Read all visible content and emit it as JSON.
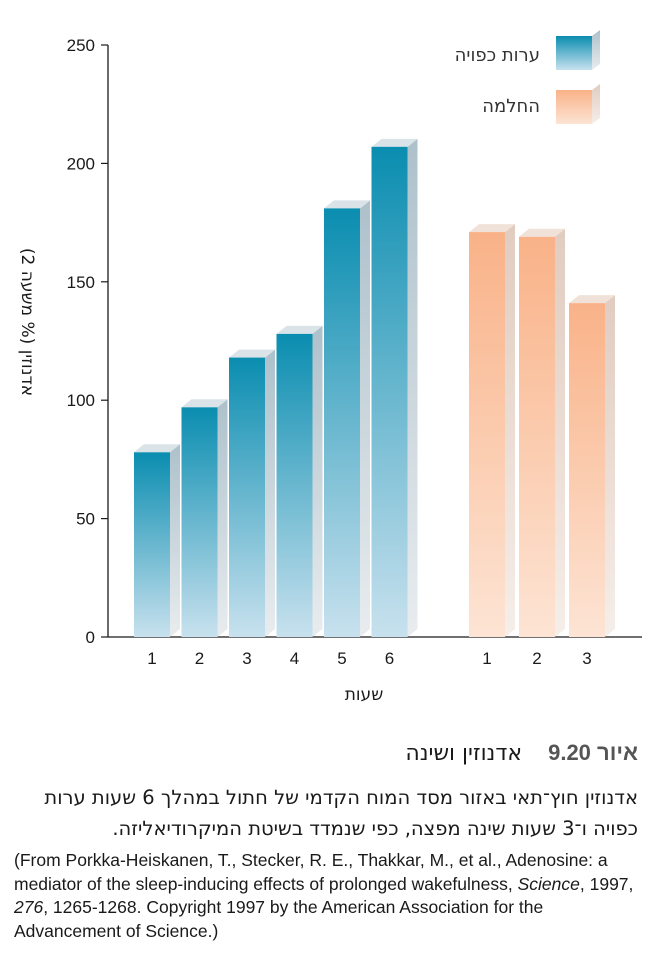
{
  "chart_data": {
    "type": "bar",
    "ylabel": "אדנוזין (% משעה 2)",
    "xlabel": "שעות",
    "ylim": [
      0,
      250
    ],
    "yticks": [
      0,
      50,
      100,
      150,
      200,
      250
    ],
    "legend_position": "top-right",
    "series": [
      {
        "name": "ערות כפויה",
        "color": "#0a8db0",
        "color_light": "#c8e1ee",
        "categories": [
          "1",
          "2",
          "3",
          "4",
          "5",
          "6"
        ],
        "values": [
          78,
          97,
          118,
          128,
          181,
          207
        ]
      },
      {
        "name": "החלמה",
        "color": "#f9b288",
        "color_light": "#fde4d4",
        "categories": [
          "1",
          "2",
          "3"
        ],
        "values": [
          171,
          169,
          141
        ]
      }
    ]
  },
  "caption": {
    "figure_number": "איור 9.20",
    "figure_title": "אדנוזין ושינה",
    "text": "אדנוזין חוץ־תאי באזור מסד המוח הקדמי של חתול במהלך 6 שעות ערות כפויה ו־3 שעות שינה מפצה, כפי שנמדד בשיטת המיקרודיאליזה.",
    "credit_prefix": "(From Porkka-Heiskanen, T., Stecker, R. E., Thakkar, M., et al., Adenosine: a mediator of the sleep-inducing effects of prolonged wakefulness, ",
    "credit_journal": "Science",
    "credit_year": ", 1997, ",
    "credit_volume": "276",
    "credit_suffix": ", 1265-1268. Copyright 1997 by the American Association for the Advancement of Science.)"
  }
}
